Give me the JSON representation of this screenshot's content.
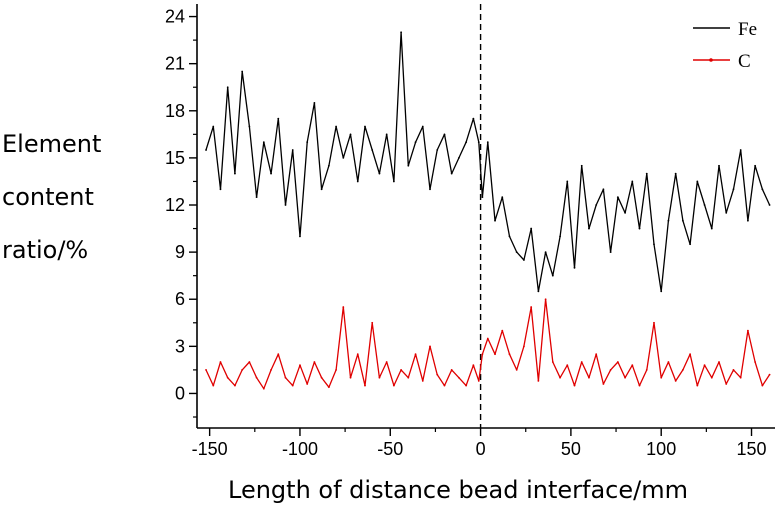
{
  "chart_data": {
    "type": "line",
    "title": "",
    "xlabel": "Length of distance bead interface/mm",
    "ylabel_lines": [
      "Element",
      "content",
      "ratio/%"
    ],
    "xlim": [
      -157,
      163
    ],
    "ylim": [
      -2.2,
      24.8
    ],
    "x_ticks": [
      -150,
      -100,
      -50,
      0,
      50,
      100,
      150
    ],
    "y_ticks": [
      0,
      3,
      6,
      9,
      12,
      15,
      18,
      21,
      24
    ],
    "tick_labels_x": [
      "-150",
      "-100",
      "-50",
      "0",
      "50",
      "100",
      "150"
    ],
    "tick_labels_y": [
      "0",
      "3",
      "6",
      "9",
      "12",
      "15",
      "18",
      "21",
      "24"
    ],
    "interface_line_x": 0,
    "legend": {
      "position": "top-right"
    },
    "series": [
      {
        "name": "Fe",
        "color": "#000000",
        "x": [
          -152,
          -148,
          -144,
          -140,
          -136,
          -132,
          -128,
          -124,
          -120,
          -116,
          -112,
          -108,
          -104,
          -100,
          -96,
          -92,
          -88,
          -84,
          -80,
          -76,
          -72,
          -68,
          -64,
          -60,
          -56,
          -52,
          -48,
          -44,
          -40,
          -36,
          -32,
          -28,
          -24,
          -20,
          -16,
          -12,
          -8,
          -4,
          -1,
          1,
          4,
          8,
          12,
          16,
          20,
          24,
          28,
          32,
          36,
          40,
          44,
          48,
          52,
          56,
          60,
          64,
          68,
          72,
          76,
          80,
          84,
          88,
          92,
          96,
          100,
          104,
          108,
          112,
          116,
          120,
          124,
          128,
          132,
          136,
          140,
          144,
          148,
          152,
          156,
          160
        ],
        "y": [
          15.5,
          17.0,
          13.0,
          19.5,
          14.0,
          20.5,
          17.0,
          12.5,
          16.0,
          14.0,
          17.5,
          12.0,
          15.5,
          10.0,
          16.0,
          18.5,
          13.0,
          14.5,
          17.0,
          15.0,
          16.5,
          13.5,
          17.0,
          15.5,
          14.0,
          16.5,
          13.5,
          23.0,
          14.5,
          16.0,
          17.0,
          13.0,
          15.5,
          16.5,
          14.0,
          15.0,
          16.0,
          17.5,
          16.0,
          12.5,
          16.0,
          11.0,
          12.5,
          10.0,
          9.0,
          8.5,
          10.5,
          6.5,
          9.0,
          7.5,
          10.0,
          13.5,
          8.0,
          14.5,
          10.5,
          12.0,
          13.0,
          9.0,
          12.5,
          11.5,
          13.5,
          10.5,
          14.0,
          9.5,
          6.5,
          11.0,
          14.0,
          11.0,
          9.5,
          13.5,
          12.0,
          10.5,
          14.5,
          11.5,
          13.0,
          15.5,
          11.0,
          14.5,
          13.0,
          12.0
        ]
      },
      {
        "name": "C",
        "color": "#e00000",
        "x": [
          -152,
          -148,
          -144,
          -140,
          -136,
          -132,
          -128,
          -124,
          -120,
          -116,
          -112,
          -108,
          -104,
          -100,
          -96,
          -92,
          -88,
          -84,
          -80,
          -76,
          -72,
          -68,
          -64,
          -60,
          -56,
          -52,
          -48,
          -44,
          -40,
          -36,
          -32,
          -28,
          -24,
          -20,
          -16,
          -12,
          -8,
          -4,
          -1,
          1,
          4,
          8,
          12,
          16,
          20,
          24,
          28,
          32,
          36,
          40,
          44,
          48,
          52,
          56,
          60,
          64,
          68,
          72,
          76,
          80,
          84,
          88,
          92,
          96,
          100,
          104,
          108,
          112,
          116,
          120,
          124,
          128,
          132,
          136,
          140,
          144,
          148,
          152,
          156,
          160
        ],
        "y": [
          1.5,
          0.5,
          2.0,
          1.0,
          0.5,
          1.5,
          2.0,
          1.0,
          0.3,
          1.5,
          2.5,
          1.0,
          0.5,
          1.8,
          0.6,
          2.0,
          1.0,
          0.4,
          1.5,
          5.5,
          1.0,
          2.5,
          0.5,
          4.5,
          1.0,
          2.0,
          0.5,
          1.5,
          1.0,
          2.5,
          0.8,
          3.0,
          1.2,
          0.5,
          1.5,
          1.0,
          0.5,
          1.8,
          0.8,
          2.5,
          3.5,
          2.5,
          4.0,
          2.5,
          1.5,
          3.0,
          5.5,
          0.8,
          6.0,
          2.0,
          1.0,
          1.8,
          0.5,
          2.0,
          1.0,
          2.5,
          0.6,
          1.5,
          2.0,
          1.0,
          1.8,
          0.5,
          1.5,
          4.5,
          1.0,
          2.0,
          0.8,
          1.5,
          2.5,
          0.5,
          1.8,
          1.0,
          2.0,
          0.6,
          1.5,
          1.0,
          4.0,
          2.0,
          0.5,
          1.2
        ]
      }
    ]
  }
}
